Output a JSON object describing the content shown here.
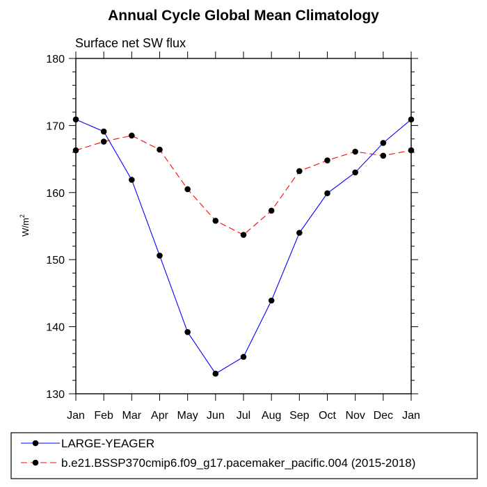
{
  "chart_data": {
    "type": "line",
    "title": "Annual Cycle Global Mean Climatology",
    "subtitle": "Surface net SW flux",
    "ylabel": "W/m",
    "ylabel_sup": "2",
    "xlabel": "",
    "categories": [
      "Jan",
      "Feb",
      "Mar",
      "Apr",
      "May",
      "Jun",
      "Jul",
      "Aug",
      "Sep",
      "Oct",
      "Nov",
      "Dec",
      "Jan"
    ],
    "ylim": [
      130,
      180
    ],
    "yticks": [
      130,
      140,
      150,
      160,
      170,
      180
    ],
    "grid": false,
    "legend_position": "bottom",
    "series": [
      {
        "name": "LARGE-YEAGER",
        "color": "#0000ff",
        "dash": "solid",
        "values": [
          170.9,
          169.1,
          161.9,
          150.6,
          139.2,
          133.0,
          135.5,
          143.9,
          154.0,
          159.9,
          163.0,
          167.4,
          170.9
        ]
      },
      {
        "name": "b.e21.BSSP370cmip6.f09_g17.pacemaker_pacific.004 (2015-2018)",
        "color": "#ff0000",
        "dash": "dashed",
        "values": [
          166.3,
          167.6,
          168.5,
          166.4,
          160.5,
          155.8,
          153.7,
          157.3,
          163.2,
          164.8,
          166.1,
          165.5,
          166.3
        ]
      }
    ]
  }
}
